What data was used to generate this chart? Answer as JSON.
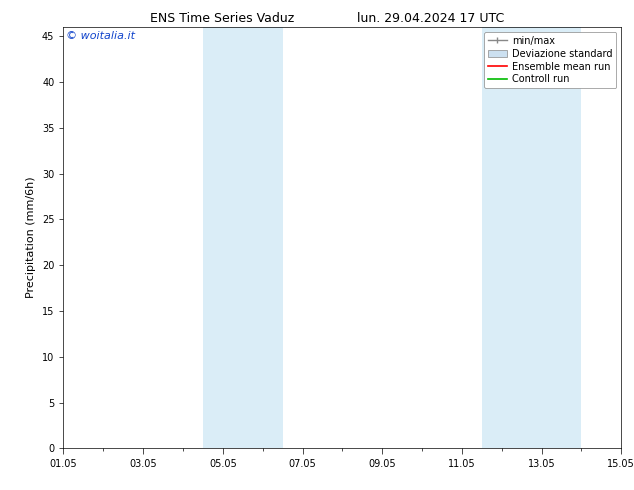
{
  "title_left": "ENS Time Series Vaduz",
  "title_right": "lun. 29.04.2024 17 UTC",
  "ylabel": "Precipitation (mm/6h)",
  "watermark": "© woitalia.it",
  "watermark_color": "#1144cc",
  "x_tick_labels": [
    "01.05",
    "03.05",
    "05.05",
    "07.05",
    "09.05",
    "11.05",
    "13.05",
    "15.05"
  ],
  "x_tick_positions_days": [
    0,
    2,
    4,
    6,
    8,
    10,
    12,
    14
  ],
  "ylim": [
    0,
    46
  ],
  "yticks": [
    0,
    5,
    10,
    15,
    20,
    25,
    30,
    35,
    40,
    45
  ],
  "background_color": "#ffffff",
  "plot_bg_color": "#ffffff",
  "shaded_bands": [
    {
      "x_start_day": 3.5,
      "x_end_day": 4.0,
      "color": "#daedf7"
    },
    {
      "x_start_day": 4.0,
      "x_end_day": 5.5,
      "color": "#daedf7"
    },
    {
      "x_start_day": 10.5,
      "x_end_day": 11.0,
      "color": "#daedf7"
    },
    {
      "x_start_day": 11.0,
      "x_end_day": 13.0,
      "color": "#daedf7"
    }
  ],
  "legend_items": [
    {
      "label": "min/max",
      "color": "#888888",
      "type": "minmax"
    },
    {
      "label": "Deviazione standard",
      "color": "#cce0f0",
      "type": "rect"
    },
    {
      "label": "Ensemble mean run",
      "color": "#ff0000",
      "type": "line"
    },
    {
      "label": "Controll run",
      "color": "#00bb00",
      "type": "line"
    }
  ],
  "title_fontsize": 9,
  "ylabel_fontsize": 8,
  "tick_fontsize": 7,
  "legend_fontsize": 7,
  "watermark_fontsize": 8
}
